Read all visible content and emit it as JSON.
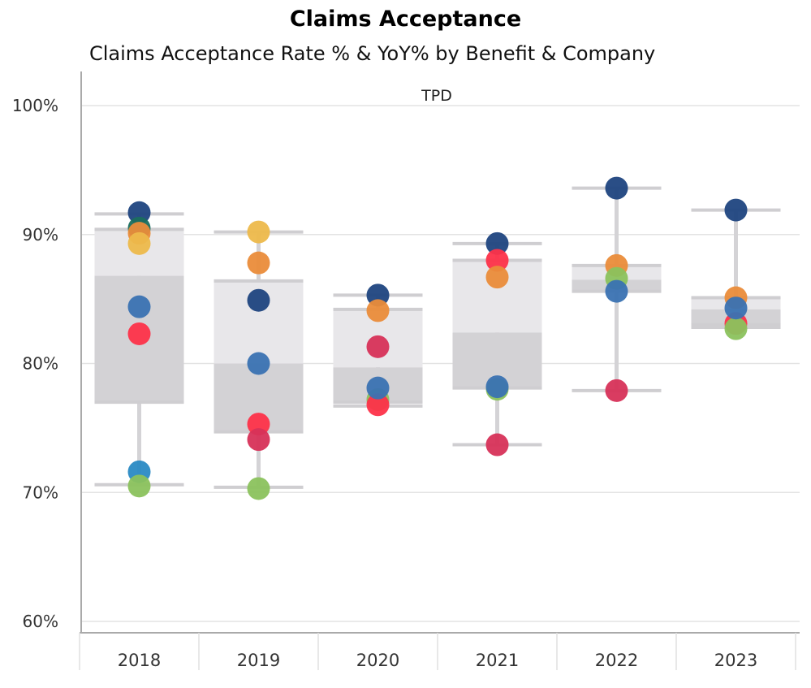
{
  "title": "Claims Acceptance",
  "subtitle": "Claims Acceptance Rate % & YoY% by Benefit & Company",
  "chart_data": {
    "type": "boxplot-with-points",
    "panel_label": "TPD",
    "categories": [
      "2018",
      "2019",
      "2020",
      "2021",
      "2022",
      "2023"
    ],
    "ylim": [
      60,
      100
    ],
    "yticks": [
      60,
      70,
      80,
      90,
      100
    ],
    "ytick_labels": [
      "60%",
      "70%",
      "80%",
      "90%",
      "100%"
    ],
    "grid": true,
    "boxes": [
      {
        "min": 70.6,
        "q1": 77.0,
        "median": 86.8,
        "q3": 90.4,
        "max": 91.6
      },
      {
        "min": 70.4,
        "q1": 74.7,
        "median": 80.0,
        "q3": 86.4,
        "max": 90.2
      },
      {
        "min": 76.7,
        "q1": 77.0,
        "median": 79.7,
        "q3": 84.2,
        "max": 85.3
      },
      {
        "min": 73.7,
        "q1": 78.1,
        "median": 82.4,
        "q3": 88.0,
        "max": 89.3
      },
      {
        "min": 77.9,
        "q1": 85.6,
        "median": 86.5,
        "q3": 87.6,
        "max": 93.6
      },
      {
        "min": 82.8,
        "q1": 83.0,
        "median": 84.2,
        "q3": 85.1,
        "max": 91.9
      }
    ],
    "points": [
      [
        [
          "#1f4580",
          91.7
        ],
        [
          "#1a6e5e",
          90.5
        ],
        [
          "#ea8c3a",
          90.1
        ],
        [
          "#edb94b",
          89.3
        ],
        [
          "#3a72b2",
          84.4
        ],
        [
          "#fd3249",
          82.3
        ],
        [
          "#2a8ac4",
          71.6
        ],
        [
          "#8bc25d",
          70.5
        ]
      ],
      [
        [
          "#edb94b",
          90.2
        ],
        [
          "#ea8c3a",
          87.8
        ],
        [
          "#1f4580",
          84.9
        ],
        [
          "#3a72b2",
          80.0
        ],
        [
          "#fd3249",
          75.3
        ],
        [
          "#d73158",
          74.1
        ],
        [
          "#8bc25d",
          70.3
        ]
      ],
      [
        [
          "#1f4580",
          85.3
        ],
        [
          "#ea8c3a",
          84.1
        ],
        [
          "#d73158",
          81.3
        ],
        [
          "#8bc25d",
          77.2
        ],
        [
          "#fd3249",
          76.8
        ],
        [
          "#3a72b2",
          78.1
        ]
      ],
      [
        [
          "#1f4580",
          89.3
        ],
        [
          "#fd3249",
          88.0
        ],
        [
          "#ea8c3a",
          86.7
        ],
        [
          "#8bc25d",
          78.0
        ],
        [
          "#3a72b2",
          78.2
        ],
        [
          "#d73158",
          73.7
        ]
      ],
      [
        [
          "#1f4580",
          93.6
        ],
        [
          "#ea8c3a",
          87.6
        ],
        [
          "#8bc25d",
          86.6
        ],
        [
          "#3a72b2",
          85.6
        ],
        [
          "#d73158",
          77.9
        ]
      ],
      [
        [
          "#1f4580",
          91.9
        ],
        [
          "#ea8c3a",
          85.1
        ],
        [
          "#fd3249",
          83.1
        ],
        [
          "#8bc25d",
          82.7
        ],
        [
          "#3a72b2",
          84.3
        ]
      ]
    ],
    "colors": {
      "box_upper": "#e8e7ea",
      "box_lower": "#d3d2d5",
      "whisker": "#d4d3d6"
    }
  }
}
